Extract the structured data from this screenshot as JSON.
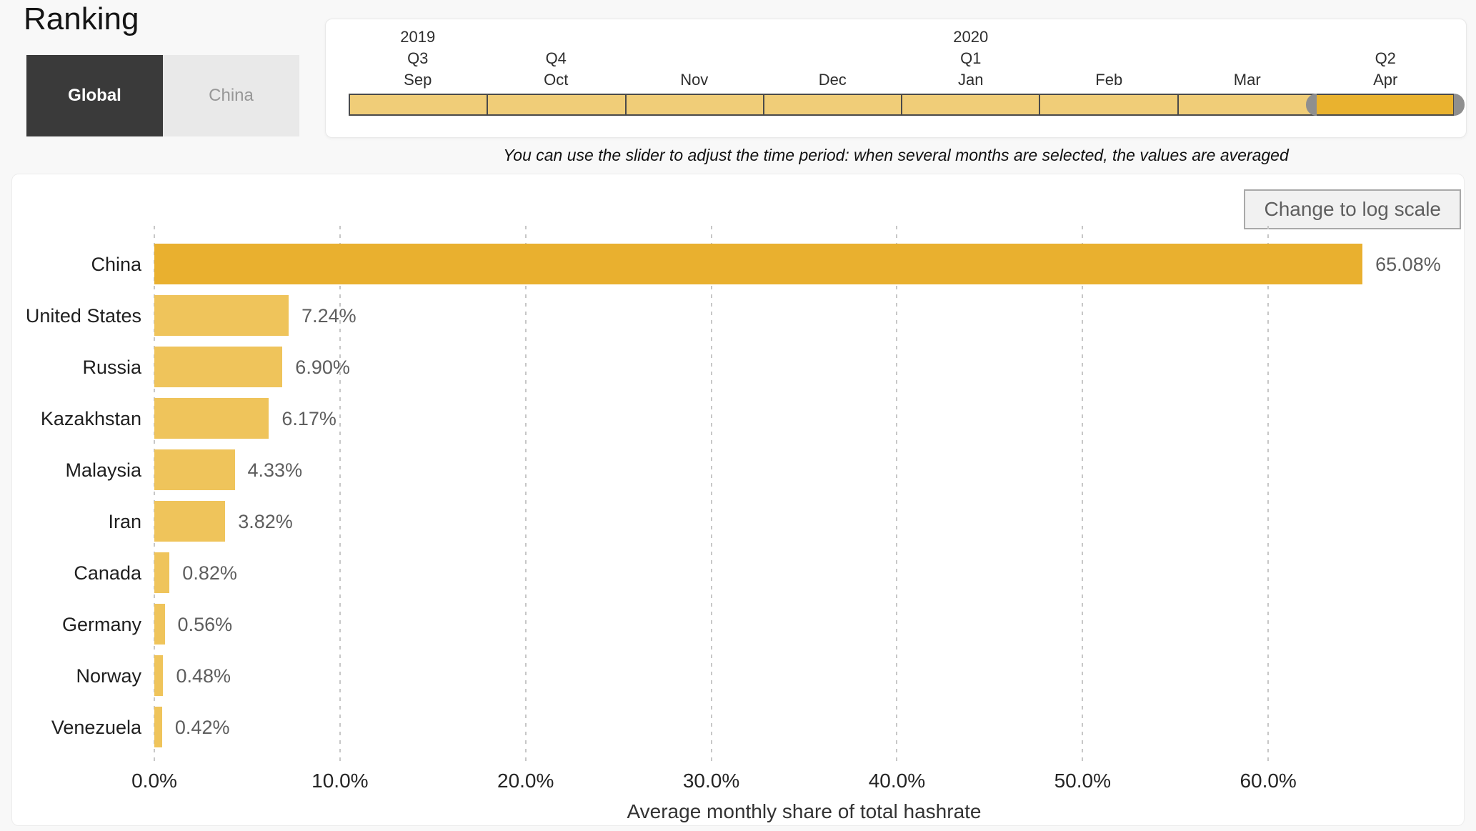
{
  "title": "Ranking",
  "view_toggle": {
    "options": [
      {
        "label": "Global",
        "selected": true
      },
      {
        "label": "China",
        "selected": false
      }
    ]
  },
  "time_slider": {
    "instruction": "You can use the slider to adjust the time period: when several months are selected, the values are averaged",
    "segments": [
      {
        "month": "Sep",
        "quarter": "Q3",
        "year": "2019",
        "selected": false
      },
      {
        "month": "Oct",
        "quarter": "Q4",
        "selected": false
      },
      {
        "month": "Nov",
        "selected": false
      },
      {
        "month": "Dec",
        "selected": false
      },
      {
        "month": "Jan",
        "quarter": "Q1",
        "year": "2020",
        "selected": false
      },
      {
        "month": "Feb",
        "selected": false
      },
      {
        "month": "Mar",
        "selected": false
      },
      {
        "month": "Apr",
        "quarter": "Q2",
        "selected": true
      }
    ],
    "track_color": "#F0CD78",
    "selected_color": "#E9B22F",
    "segment_border_color": "#4A4A4A",
    "handle_color": "#8F8F8F"
  },
  "chart": {
    "log_scale_button": "Change to log scale"
  },
  "chart_data": {
    "type": "bar",
    "orientation": "horizontal",
    "title": "",
    "xlabel": "Average monthly share of total hashrate",
    "categories": [
      "China",
      "United States",
      "Russia",
      "Kazakhstan",
      "Malaysia",
      "Iran",
      "Canada",
      "Germany",
      "Norway",
      "Venezuela"
    ],
    "values": [
      65.08,
      7.24,
      6.9,
      6.17,
      4.33,
      3.82,
      0.82,
      0.56,
      0.48,
      0.42
    ],
    "value_labels": [
      "65.08%",
      "7.24%",
      "6.90%",
      "6.17%",
      "4.33%",
      "3.82%",
      "0.82%",
      "0.56%",
      "0.48%",
      "0.42%"
    ],
    "xlim": [
      0,
      70
    ],
    "xticks": [
      0,
      10,
      20,
      30,
      40,
      50,
      60
    ],
    "xtick_labels": [
      "0.0%",
      "10.0%",
      "20.0%",
      "30.0%",
      "40.0%",
      "50.0%",
      "60.0%"
    ],
    "grid": "vertical-dashed",
    "legend": "none",
    "bar_color": "#EFC45B",
    "highlight_color": "#E9B02F",
    "highlighted_category": "China"
  }
}
